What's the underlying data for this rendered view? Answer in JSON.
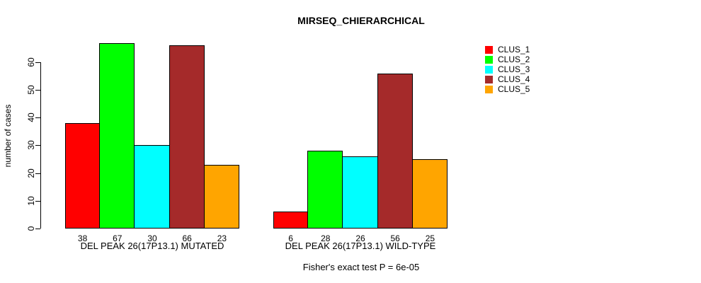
{
  "chart_data": {
    "type": "bar",
    "title": "MIRSEQ_CHIERARCHICAL",
    "ylabel": "number of cases",
    "xlabel": "",
    "yticks": [
      0,
      10,
      20,
      30,
      40,
      50,
      60
    ],
    "ylim": [
      0,
      70
    ],
    "grid": false,
    "legend_position": "top-right",
    "series": [
      "CLUS_1",
      "CLUS_2",
      "CLUS_3",
      "CLUS_4",
      "CLUS_5"
    ],
    "colors": [
      "#FF0000",
      "#00FF00",
      "#00FFFF",
      "#A52A2A",
      "#FFA500"
    ],
    "groups": [
      {
        "label": "DEL PEAK 26(17P13.1) MUTATED",
        "values": [
          38,
          67,
          30,
          66,
          23
        ]
      },
      {
        "label": "DEL PEAK 26(17P13.1) WILD-TYPE",
        "values": [
          6,
          28,
          26,
          56,
          25
        ]
      }
    ],
    "annotation": "Fisher's exact test P = 6e-05"
  }
}
